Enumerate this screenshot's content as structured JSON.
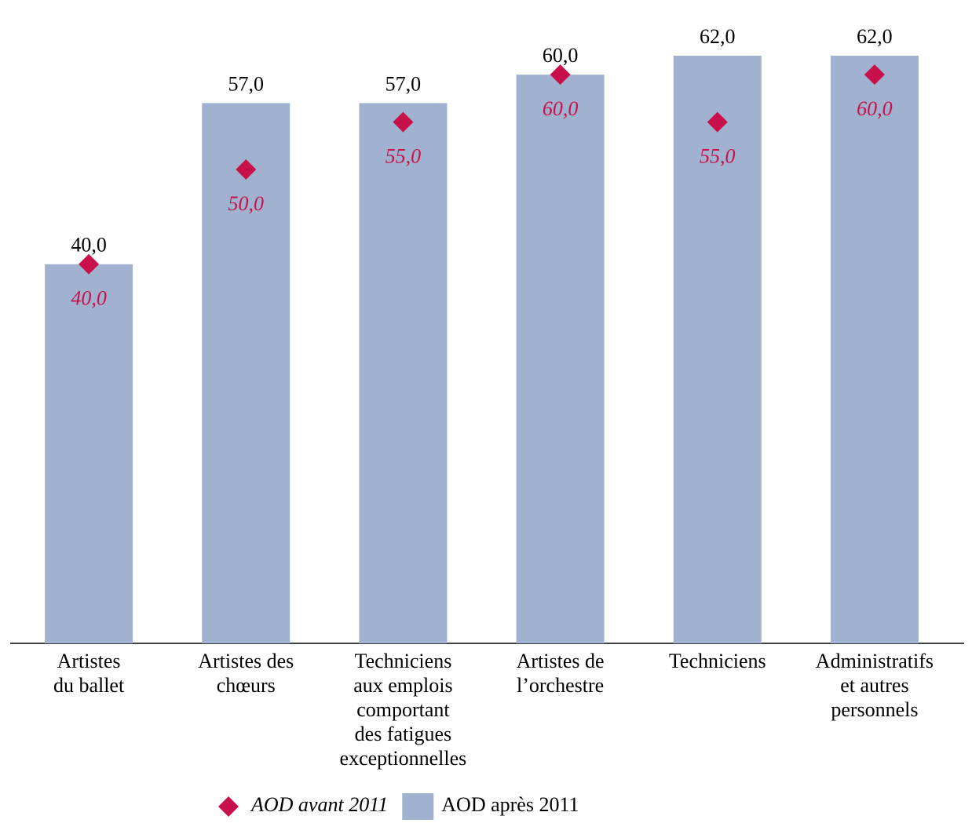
{
  "chart_data": {
    "type": "bar",
    "categories": [
      [
        "Artistes",
        "du ballet"
      ],
      [
        "Artistes des",
        "chœurs"
      ],
      [
        "Techniciens",
        "aux emplois",
        "comportant",
        "des fatigues",
        "exceptionnelles"
      ],
      [
        "Artistes de",
        "l’orchestre"
      ],
      [
        "Techniciens"
      ],
      [
        "Administratifs",
        "et autres",
        "personnels"
      ]
    ],
    "series": [
      {
        "name": "AOD après 2011",
        "type": "bar",
        "color": "#a0b2cf",
        "values": [
          40,
          57,
          57,
          60,
          62,
          62
        ],
        "value_labels": [
          "40,0",
          "57,0",
          "57,0",
          "60,0",
          "62,0",
          "62,0"
        ]
      },
      {
        "name": "AOD avant 2011",
        "type": "scatter",
        "color": "#c8104a",
        "values": [
          40,
          50,
          55,
          60,
          55,
          60
        ],
        "value_labels": [
          "40,0",
          "50,0",
          "55,0",
          "60,0",
          "55,0",
          "60,0"
        ]
      }
    ],
    "ylim": [
      0,
      62
    ]
  }
}
